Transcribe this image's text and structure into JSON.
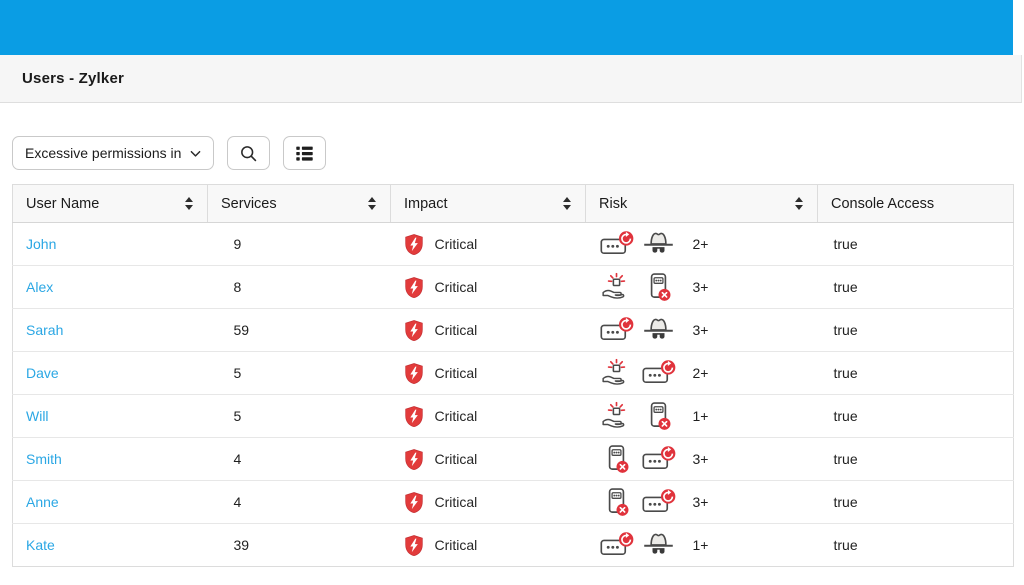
{
  "header": {
    "title": "Users - Zylker"
  },
  "toolbar": {
    "filter_label": "Excessive permissions in",
    "search_button": "search",
    "list_view_button": "list-view"
  },
  "table": {
    "columns": [
      {
        "label": "User Name",
        "sortable": true
      },
      {
        "label": "Services",
        "sortable": true
      },
      {
        "label": "Impact",
        "sortable": true
      },
      {
        "label": "Risk",
        "sortable": true
      },
      {
        "label": "Console Access",
        "sortable": false
      }
    ],
    "rows": [
      {
        "user": "John",
        "services": "9",
        "impact": "Critical",
        "risk_icons": [
          "password-rotation",
          "hacker-hat"
        ],
        "risk_count": "2+",
        "console_access": "true"
      },
      {
        "user": "Alex",
        "services": "8",
        "impact": "Critical",
        "risk_icons": [
          "risky-grant",
          "access-revoked"
        ],
        "risk_count": "3+",
        "console_access": "true"
      },
      {
        "user": "Sarah",
        "services": "59",
        "impact": "Critical",
        "risk_icons": [
          "password-rotation",
          "hacker-hat"
        ],
        "risk_count": "3+",
        "console_access": "true"
      },
      {
        "user": "Dave",
        "services": "5",
        "impact": "Critical",
        "risk_icons": [
          "risky-grant",
          "password-rotation"
        ],
        "risk_count": "2+",
        "console_access": "true"
      },
      {
        "user": "Will",
        "services": "5",
        "impact": "Critical",
        "risk_icons": [
          "risky-grant",
          "access-revoked"
        ],
        "risk_count": "1+",
        "console_access": "true"
      },
      {
        "user": "Smith",
        "services": "4",
        "impact": "Critical",
        "risk_icons": [
          "access-revoked",
          "password-rotation"
        ],
        "risk_count": "3+",
        "console_access": "true"
      },
      {
        "user": "Anne",
        "services": "4",
        "impact": "Critical",
        "risk_icons": [
          "access-revoked",
          "password-rotation"
        ],
        "risk_count": "3+",
        "console_access": "true"
      },
      {
        "user": "Kate",
        "services": "39",
        "impact": "Critical",
        "risk_icons": [
          "password-rotation",
          "hacker-hat"
        ],
        "risk_count": "1+",
        "console_access": "true"
      }
    ]
  },
  "colors": {
    "topbar_blue": "#0a9de4",
    "link_blue": "#2ba7e4",
    "critical_red": "#e23b3b",
    "badge_red": "#e0333c"
  }
}
